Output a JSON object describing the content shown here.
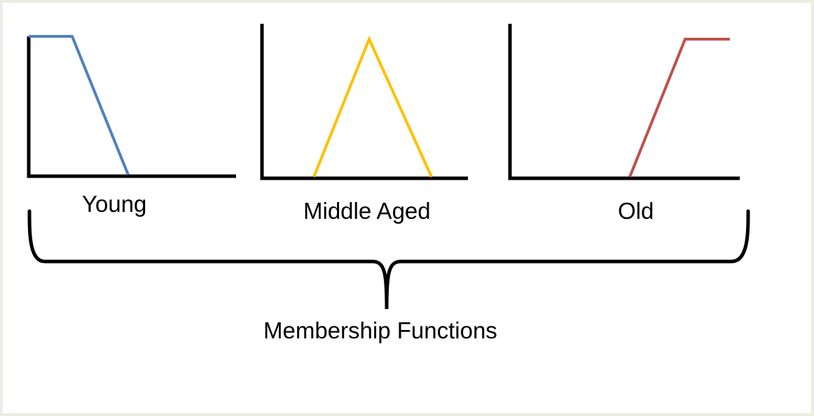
{
  "diagram": {
    "panels": [
      {
        "label": "Young",
        "shape": "falling-ramp",
        "color": "#4f81bd"
      },
      {
        "label": "Middle Aged",
        "shape": "triangle",
        "color": "#ffc000"
      },
      {
        "label": "Old",
        "shape": "rising-ramp",
        "color": "#c0504d"
      }
    ],
    "caption": "Membership Functions",
    "axis_color": "#000000",
    "border_color": "#ecece2"
  }
}
